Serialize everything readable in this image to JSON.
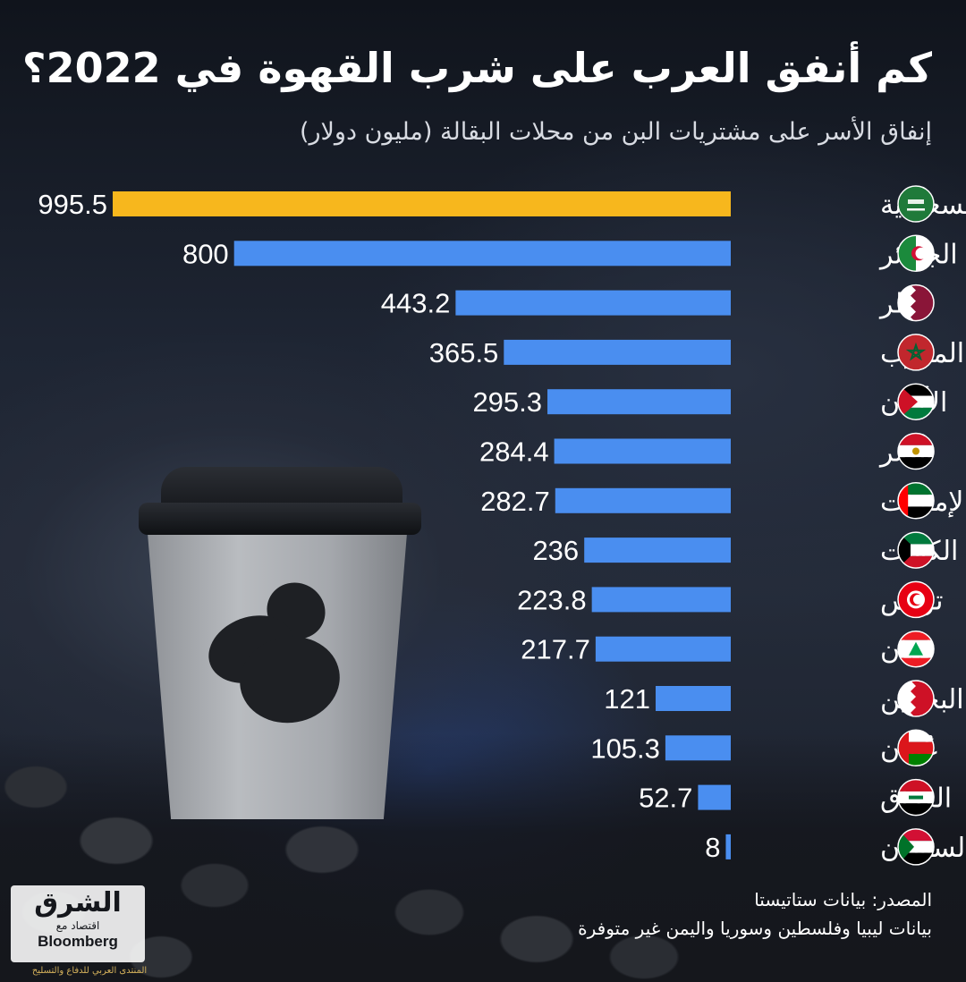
{
  "title": "كم أنفق العرب على شرب القهوة في 2022؟",
  "subtitle": "إنفاق الأسر على مشتريات البن من محلات البقالة (مليون دولار)",
  "colors": {
    "highlight": "#f7b71d",
    "bar": "#4a8ef0",
    "background": "#1c2230",
    "text": "#ffffff"
  },
  "chart_data": {
    "type": "bar",
    "orientation": "horizontal",
    "categories": [
      "السعودية",
      "الجزائر",
      "قطر",
      "المغرب",
      "الأردن",
      "مصر",
      "الإمارات",
      "الكويت",
      "تونس",
      "لبنان",
      "البحرين",
      "عُمان",
      "العراق",
      "السودان"
    ],
    "values": [
      995.5,
      800,
      443.2,
      365.5,
      295.3,
      284.4,
      282.7,
      236,
      223.8,
      217.7,
      121,
      105.3,
      52.7,
      8
    ],
    "value_labels": [
      "995.5",
      "800",
      "443.2",
      "365.5",
      "295.3",
      "284.4",
      "282.7",
      "236",
      "223.8",
      "217.7",
      "121",
      "105.3",
      "52.7",
      "8"
    ],
    "highlight_index": 0,
    "xlim": [
      0,
      995.5
    ],
    "flag_icons": [
      "flag-saudi-arabia-icon",
      "flag-algeria-icon",
      "flag-qatar-icon",
      "flag-morocco-icon",
      "flag-jordan-icon",
      "flag-egypt-icon",
      "flag-uae-icon",
      "flag-kuwait-icon",
      "flag-tunisia-icon",
      "flag-lebanon-icon",
      "flag-bahrain-icon",
      "flag-oman-icon",
      "flag-iraq-icon",
      "flag-sudan-icon"
    ]
  },
  "footer": {
    "source": "المصدر: بيانات ستاتيستا",
    "note": "بيانات ليبيا وفلسطين وسوريا واليمن غير متوفرة"
  },
  "logo": {
    "main": "الشرق",
    "sub": "اقتصاد مع",
    "brand": "Bloomberg"
  },
  "watermark": "المنتدى العربي للدفاع والتسليح"
}
